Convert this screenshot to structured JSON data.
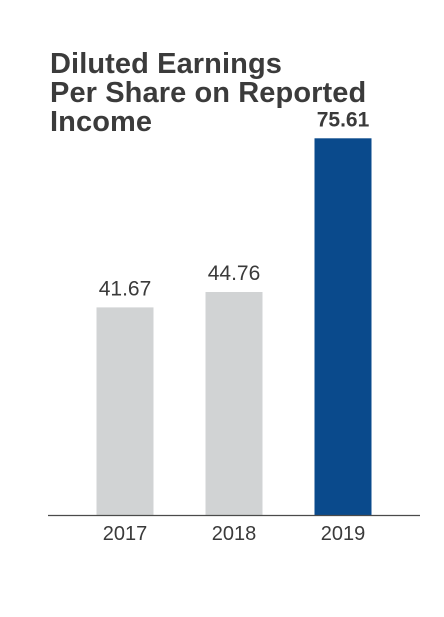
{
  "title_lines": [
    "Diluted Earnings",
    "Per Share on Reported",
    "Income"
  ],
  "colors": {
    "bar_default": "#d1d3d4",
    "bar_highlight": "#0a4a8c",
    "axis": "#4a4a4a",
    "text": "#3a3a3a"
  },
  "chart_data": {
    "type": "bar",
    "title": "Diluted Earnings Per Share on Reported Income",
    "categories": [
      "2017",
      "2018",
      "2019"
    ],
    "values": [
      41.67,
      44.76,
      75.61
    ],
    "value_labels": [
      "41.67",
      "44.76",
      "75.61"
    ],
    "highlight_category": "2019",
    "xlabel": "",
    "ylabel": "",
    "ylim": [
      0,
      83.9
    ],
    "grid": false,
    "legend": "none"
  }
}
